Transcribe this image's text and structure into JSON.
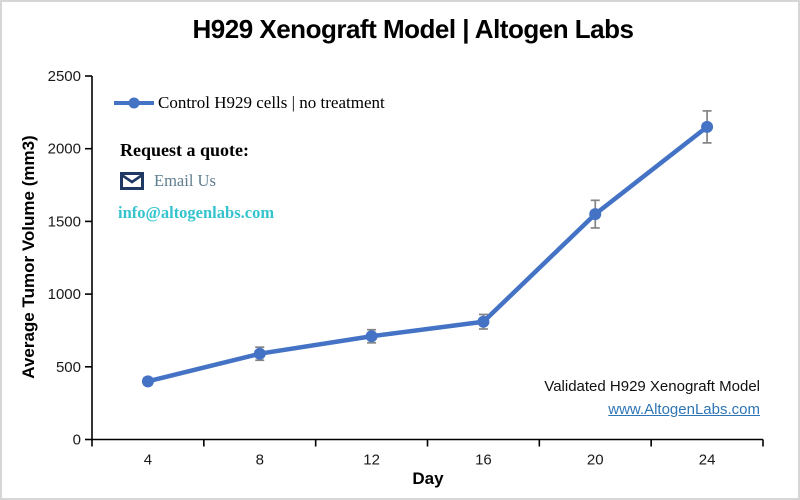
{
  "title": "H929 Xenograft Model | Altogen Labs",
  "quote_block": {
    "heading": "Request a quote:",
    "email_link_label": "Email Us",
    "email_address": "info@altogenlabs.com"
  },
  "footer_note": {
    "text": "Validated H929 Xenograft Model",
    "link": "www.AltogenLabs.com"
  },
  "colors": {
    "series": "#4472C4",
    "error_bar": "#848484",
    "axis": "#000000",
    "email_text": "#5E7D8F",
    "email_address": "#35C4CF",
    "link": "#2E75B6",
    "envelope": "#1F3864"
  },
  "chart_data": {
    "type": "line",
    "title": "H929 Xenograft Model | Altogen Labs",
    "xlabel": "Day",
    "ylabel": "Average Tumor Volume (mm3)",
    "categories": [
      4,
      8,
      12,
      16,
      20,
      24
    ],
    "series": [
      {
        "name": "Control H929 cells | no treatment",
        "values": [
          400,
          590,
          710,
          810,
          1550,
          2150
        ],
        "error_bars_plus_minus": [
          25,
          45,
          45,
          50,
          95,
          110
        ],
        "marker": "circle"
      }
    ],
    "ylim": [
      0,
      2500
    ],
    "yticks": [
      0,
      500,
      1000,
      1500,
      2000,
      2500
    ],
    "grid": false,
    "legend_position": "top-left"
  }
}
